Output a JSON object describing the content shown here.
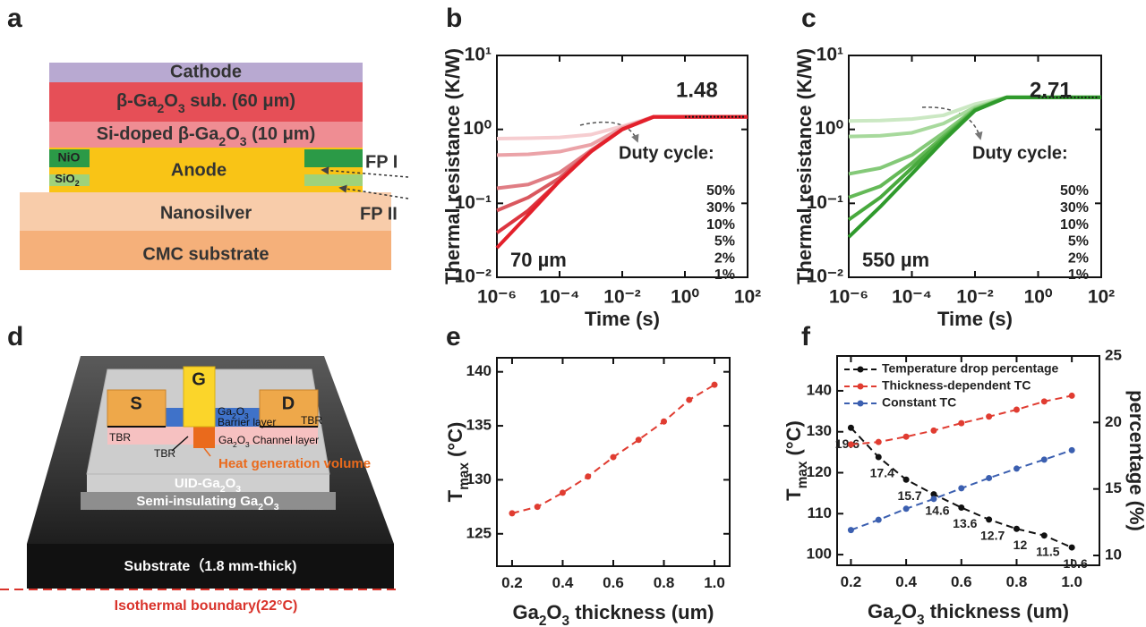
{
  "panel_labels": [
    "a",
    "b",
    "c",
    "d",
    "e",
    "f"
  ],
  "diagram_a": {
    "cathode": "Cathode",
    "substrate": [
      "β-Ga",
      "2",
      "O",
      "3",
      " sub. (60 μm)"
    ],
    "doped": [
      "Si-doped β-Ga",
      "2",
      "O",
      "3",
      " (10 μm)"
    ],
    "nio": "NiO",
    "sio2": [
      "SiO",
      "2"
    ],
    "anode": "Anode",
    "fp1": "FP I",
    "fp2": "FP II",
    "nanosilver": "Nanosilver",
    "cmc": "CMC substrate"
  },
  "diagram_d": {
    "source": "S",
    "gate": "G",
    "drain": "D",
    "tbr": [
      "TBR",
      "TBR",
      "TBR"
    ],
    "barrier_material": [
      "Ga",
      "2",
      "O",
      "3"
    ],
    "barrier": "Barrier layer",
    "channel": [
      "Ga",
      "2",
      "O",
      "3",
      " Channel layer"
    ],
    "heat": "Heat generation volume",
    "uid": [
      "UID-Ga",
      "2",
      "O",
      "3"
    ],
    "semi": [
      "Semi-insulating Ga",
      "2",
      "O",
      "3"
    ],
    "substrate": "Substrate（1.8 mm-thick)",
    "boundary": "Isothermal boundary(22°C)"
  },
  "chart_data": [
    {
      "type": "line",
      "xscale": "log",
      "yscale": "log",
      "xlim": [
        1e-06,
        100
      ],
      "ylim": [
        0.01,
        10
      ],
      "xticks": [
        {
          "value": 1e-06,
          "label": "10⁻⁶"
        },
        {
          "value": 0.0001,
          "label": "10⁻⁴"
        },
        {
          "value": 0.01,
          "label": "10⁻²"
        },
        {
          "value": 1,
          "label": "10⁰"
        },
        {
          "value": 100,
          "label": "10²"
        }
      ],
      "yticks": [
        {
          "value": 0.01,
          "label": "10⁻²"
        },
        {
          "value": 0.1,
          "label": "10⁻¹"
        },
        {
          "value": 1,
          "label": "10⁰"
        },
        {
          "value": 10,
          "label": "10¹"
        }
      ],
      "xlabel": "Time (s)",
      "ylabel": "Thermal resistance (K/W)",
      "legend": "right",
      "legend_title": "Duty cycle:",
      "annotations": [
        "1.48",
        "70 µm"
      ],
      "annotation_color": "#e0202b",
      "x": [
        1e-06,
        1e-05,
        0.0001,
        0.001,
        0.01,
        0.1,
        1,
        10,
        100
      ],
      "series": [
        {
          "name": "50%",
          "color": "#f6cdd0",
          "values": [
            0.75,
            0.76,
            0.78,
            0.85,
            1.1,
            1.48,
            1.48,
            1.48,
            1.48
          ]
        },
        {
          "name": "30%",
          "color": "#eba3a8",
          "values": [
            0.45,
            0.46,
            0.5,
            0.62,
            1.05,
            1.48,
            1.48,
            1.48,
            1.48
          ]
        },
        {
          "name": "10%",
          "color": "#e07d84",
          "values": [
            0.16,
            0.18,
            0.26,
            0.52,
            1.0,
            1.48,
            1.48,
            1.48,
            1.48
          ]
        },
        {
          "name": "5%",
          "color": "#d9585f",
          "values": [
            0.08,
            0.12,
            0.22,
            0.5,
            1.0,
            1.48,
            1.48,
            1.48,
            1.48
          ]
        },
        {
          "name": "2%",
          "color": "#dc3540",
          "values": [
            0.04,
            0.08,
            0.2,
            0.5,
            1.0,
            1.48,
            1.48,
            1.48,
            1.48
          ]
        },
        {
          "name": "1%",
          "color": "#e3202b",
          "values": [
            0.025,
            0.07,
            0.2,
            0.5,
            1.0,
            1.48,
            1.48,
            1.48,
            1.48
          ]
        }
      ]
    },
    {
      "type": "line",
      "xscale": "log",
      "yscale": "log",
      "xlim": [
        1e-06,
        100
      ],
      "ylim": [
        0.01,
        10
      ],
      "xticks": [
        {
          "value": 1e-06,
          "label": "10⁻⁶"
        },
        {
          "value": 0.0001,
          "label": "10⁻⁴"
        },
        {
          "value": 0.01,
          "label": "10⁻²"
        },
        {
          "value": 1,
          "label": "10⁰"
        },
        {
          "value": 100,
          "label": "10²"
        }
      ],
      "yticks": [
        {
          "value": 0.01,
          "label": "10⁻²"
        },
        {
          "value": 0.1,
          "label": "10⁻¹"
        },
        {
          "value": 1,
          "label": "10⁰"
        },
        {
          "value": 10,
          "label": "10¹"
        }
      ],
      "xlabel": "Time (s)",
      "ylabel": "Thermal resistance (K/W)",
      "legend": "right",
      "legend_title": "Duty cycle:",
      "annotations": [
        "2.71",
        "550 µm"
      ],
      "annotation_color": "#3aa535",
      "x": [
        1e-06,
        1e-05,
        0.0001,
        0.001,
        0.01,
        0.1,
        1,
        10,
        100
      ],
      "series": [
        {
          "name": "50%",
          "color": "#cbe8c3",
          "values": [
            1.3,
            1.32,
            1.38,
            1.55,
            2.2,
            2.71,
            2.71,
            2.71,
            2.71
          ]
        },
        {
          "name": "30%",
          "color": "#a7d99c",
          "values": [
            0.8,
            0.82,
            0.9,
            1.2,
            2.0,
            2.71,
            2.71,
            2.71,
            2.71
          ]
        },
        {
          "name": "10%",
          "color": "#84c978",
          "values": [
            0.25,
            0.3,
            0.45,
            0.9,
            1.9,
            2.71,
            2.71,
            2.71,
            2.71
          ]
        },
        {
          "name": "5%",
          "color": "#64b957",
          "values": [
            0.12,
            0.17,
            0.35,
            0.8,
            1.85,
            2.71,
            2.71,
            2.71,
            2.71
          ]
        },
        {
          "name": "2%",
          "color": "#48a93d",
          "values": [
            0.06,
            0.12,
            0.3,
            0.75,
            1.8,
            2.71,
            2.71,
            2.71,
            2.71
          ]
        },
        {
          "name": "1%",
          "color": "#2f9a2c",
          "values": [
            0.035,
            0.09,
            0.25,
            0.7,
            1.8,
            2.71,
            2.71,
            2.71,
            2.71
          ]
        }
      ]
    },
    {
      "type": "line",
      "linestyle": "dashed",
      "marker": "circle",
      "xlim": [
        0.14,
        1.06
      ],
      "ylim": [
        122,
        141.3
      ],
      "xticks": [
        0.2,
        0.4,
        0.6,
        0.8,
        {
          "value": 1,
          "label": "1.0"
        }
      ],
      "yticks": [
        125,
        130,
        135,
        140
      ],
      "xlabel": [
        "Ga",
        "2",
        "O",
        "3",
        " thickness (um)"
      ],
      "ylabel": [
        "T",
        "max",
        " (°C)"
      ],
      "x": [
        0.2,
        0.3,
        0.4,
        0.5,
        0.6,
        0.7,
        0.8,
        0.9,
        1.0
      ],
      "series": [
        {
          "color": "#e03c31",
          "values": [
            126.9,
            127.5,
            128.8,
            130.3,
            132.1,
            133.7,
            135.4,
            137.4,
            138.8
          ]
        }
      ]
    },
    {
      "type": "line",
      "linestyle": "dashed",
      "marker": "circle",
      "legend": "upper left",
      "xlim": [
        0.15,
        1.1
      ],
      "ylim": [
        97.4,
        148.5
      ],
      "y2lim": [
        9.26,
        25
      ],
      "xticks": [
        0.2,
        0.4,
        0.6,
        0.8,
        {
          "value": 1,
          "label": "1.0"
        }
      ],
      "yticks": [
        100,
        110,
        120,
        130,
        140
      ],
      "y2ticks": [
        10,
        15,
        20,
        25
      ],
      "xlabel": [
        "Ga",
        "2",
        "O",
        "3",
        " thickness (um)"
      ],
      "ylabel": [
        "T",
        "max",
        " (°C)"
      ],
      "y2label": "percentage (%)",
      "x": [
        0.2,
        0.3,
        0.4,
        0.5,
        0.6,
        0.7,
        0.8,
        0.9,
        1.0
      ],
      "series": [
        {
          "name": "Temperature drop percentage",
          "color": "#111111",
          "axis": "y2",
          "labels": true,
          "values": [
            19.6,
            17.4,
            15.7,
            14.6,
            13.6,
            12.7,
            12,
            11.5,
            10.6
          ]
        },
        {
          "name": "Thickness-dependent TC",
          "color": "#e03c31",
          "values": [
            126.9,
            127.5,
            128.8,
            130.3,
            132.1,
            133.7,
            135.4,
            137.4,
            138.8
          ]
        },
        {
          "name": "Constant TC",
          "color": "#3b5fb0",
          "values": [
            106.0,
            108.5,
            111.2,
            113.6,
            116.2,
            118.7,
            121.0,
            123.2,
            125.5
          ]
        }
      ]
    }
  ]
}
